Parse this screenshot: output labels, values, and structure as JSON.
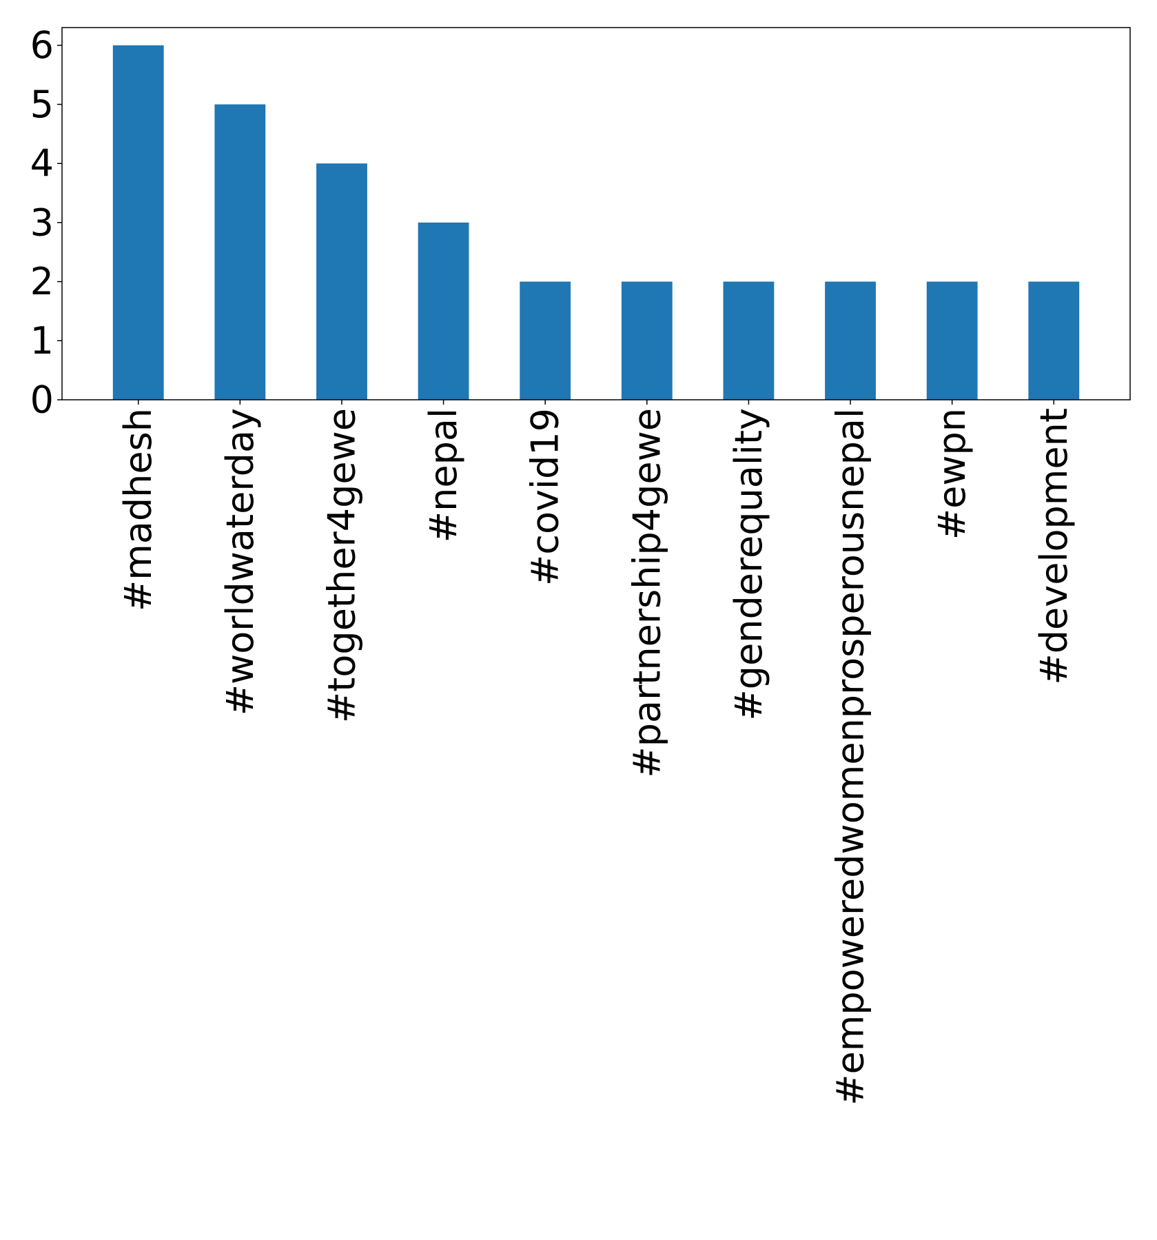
{
  "chart_data": {
    "type": "bar",
    "title": "",
    "xlabel": "",
    "ylabel": "",
    "categories": [
      "#madhesh",
      "#worldwaterday",
      "#together4gewe",
      "#nepal",
      "#covid19",
      "#partnership4gewe",
      "#genderequality",
      "#empoweredwomenprosperousnepal",
      "#ewpn",
      "#development"
    ],
    "values": [
      6,
      5,
      4,
      3,
      2,
      2,
      2,
      2,
      2,
      2
    ],
    "ylim": [
      0,
      6.3
    ],
    "yticks": [
      "0",
      "1",
      "2",
      "3",
      "4",
      "5",
      "6"
    ],
    "bar_color": "#1f77b4",
    "grid": false,
    "legend": "none"
  }
}
